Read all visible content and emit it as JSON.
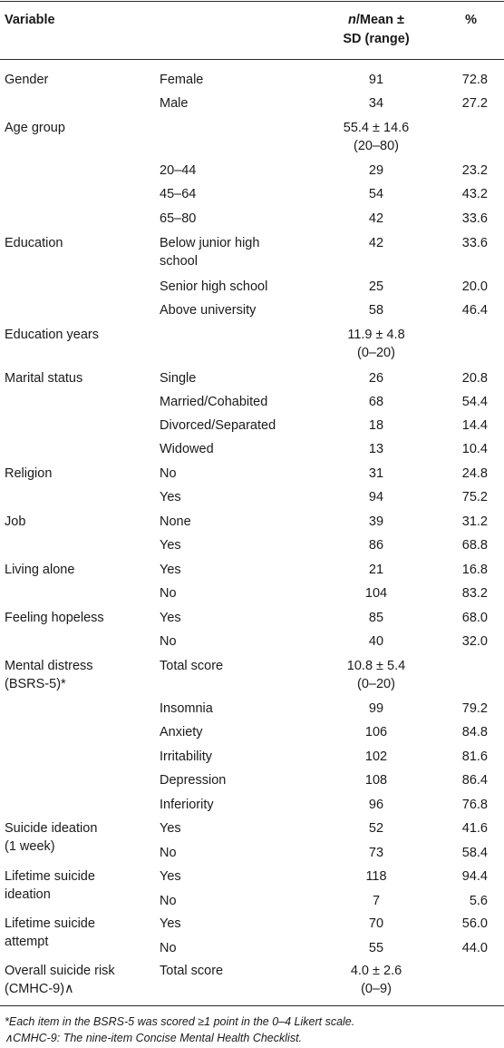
{
  "header": {
    "variable": "Variable",
    "n_italic": "n",
    "mean_line1": "/Mean ±",
    "mean_line2": "SD (range)",
    "percent": "%"
  },
  "rows": [
    {
      "variable": "Gender",
      "category": "Female",
      "value": "91",
      "percent": "72.8"
    },
    {
      "variable": "",
      "category": "Male",
      "value": "34",
      "percent": "27.2"
    },
    {
      "variable": "Age group",
      "category": "",
      "value": "55.4 ± 14.6",
      "value_range": "(20–80)",
      "percent": ""
    },
    {
      "variable": "",
      "category": "20–44",
      "value": "29",
      "percent": "23.2"
    },
    {
      "variable": "",
      "category": "45–64",
      "value": "54",
      "percent": "43.2"
    },
    {
      "variable": "",
      "category": "65–80",
      "value": "42",
      "percent": "33.6"
    },
    {
      "variable": "Education",
      "category": "Below junior high",
      "category_line2": "school",
      "value": "42",
      "percent": "33.6"
    },
    {
      "variable": "",
      "category": "Senior high school",
      "value": "25",
      "percent": "20.0"
    },
    {
      "variable": "",
      "category": "Above university",
      "value": "58",
      "percent": "46.4"
    },
    {
      "variable": "Education years",
      "category": "",
      "value": "11.9 ± 4.8",
      "value_range": "(0–20)",
      "percent": ""
    },
    {
      "variable": "Marital status",
      "category": "Single",
      "value": "26",
      "percent": "20.8"
    },
    {
      "variable": "",
      "category": "Married/Cohabited",
      "value": "68",
      "percent": "54.4"
    },
    {
      "variable": "",
      "category": "Divorced/Separated",
      "value": "18",
      "percent": "14.4"
    },
    {
      "variable": "",
      "category": "Widowed",
      "value": "13",
      "percent": "10.4"
    },
    {
      "variable": "Religion",
      "category": "No",
      "value": "31",
      "percent": "24.8"
    },
    {
      "variable": "",
      "category": "Yes",
      "value": "94",
      "percent": "75.2"
    },
    {
      "variable": "Job",
      "category": "None",
      "value": "39",
      "percent": "31.2"
    },
    {
      "variable": "",
      "category": "Yes",
      "value": "86",
      "percent": "68.8"
    },
    {
      "variable": "Living alone",
      "category": "Yes",
      "value": "21",
      "percent": "16.8"
    },
    {
      "variable": "",
      "category": "No",
      "value": "104",
      "percent": "83.2"
    },
    {
      "variable": "Feeling hopeless",
      "category": "Yes",
      "value": "85",
      "percent": "68.0"
    },
    {
      "variable": "",
      "category": "No",
      "value": "40",
      "percent": "32.0"
    },
    {
      "variable": "Mental distress",
      "variable_line2": "(BSRS-5)*",
      "category": "Total score",
      "value": "10.8 ± 5.4",
      "value_range": "(0–20)",
      "percent": ""
    },
    {
      "variable": "",
      "category": "Insomnia",
      "value": "99",
      "percent": "79.2"
    },
    {
      "variable": "",
      "category": "Anxiety",
      "value": "106",
      "percent": "84.8"
    },
    {
      "variable": "",
      "category": "Irritability",
      "value": "102",
      "percent": "81.6"
    },
    {
      "variable": "",
      "category": "Depression",
      "value": "108",
      "percent": "86.4"
    },
    {
      "variable": "",
      "category": "Inferiority",
      "value": "96",
      "percent": "76.8"
    },
    {
      "variable": "Suicide ideation",
      "variable_line2": "(1 week)",
      "category": "Yes",
      "value": "52",
      "percent": "41.6"
    },
    {
      "variable": "",
      "category": "No",
      "value": "73",
      "percent": "58.4"
    },
    {
      "variable": "Lifetime suicide",
      "variable_line2": "ideation",
      "category": "Yes",
      "value": "118",
      "percent": "94.4"
    },
    {
      "variable": "",
      "category": "No",
      "value": "7",
      "percent": "5.6"
    },
    {
      "variable": "Lifetime suicide",
      "variable_line2": "attempt",
      "category": "Yes",
      "value": "70",
      "percent": "56.0"
    },
    {
      "variable": "",
      "category": "No",
      "value": "55",
      "percent": "44.0"
    },
    {
      "variable": "Overall suicide risk",
      "variable_line2": "(CMHC-9)∧",
      "category": "Total score",
      "value": "4.0 ± 2.6",
      "value_range": "(0–9)",
      "percent": ""
    }
  ],
  "footnotes": [
    "*Each item in the BSRS-5 was scored ≥1 point in the 0–4 Likert scale.",
    "∧CMHC-9: The nine-item Concise Mental Health Checklist."
  ]
}
